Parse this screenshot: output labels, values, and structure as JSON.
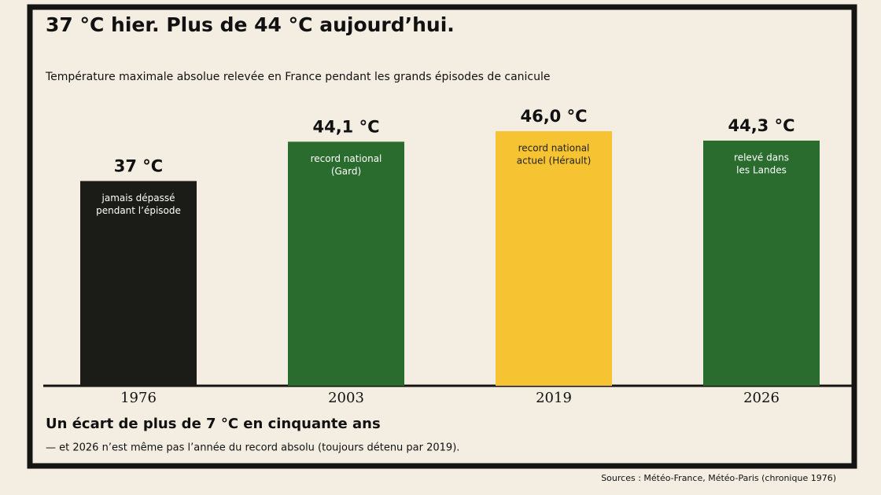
{
  "chart_data": {
    "type": "bar",
    "title": "37 °C hier. Plus de 44 °C aujourd’hui.",
    "subtitle": "Température maximale absolue relevée en France pendant les grands épisodes de canicule",
    "categories": [
      "1976",
      "2003",
      "2019",
      "2026"
    ],
    "values": [
      37,
      44.1,
      46.0,
      44.3
    ],
    "value_labels": [
      "37 °C",
      "44,1 °C",
      "46,0 °C",
      "44,3 °C"
    ],
    "colors": [
      "#1b1b18",
      "#2a6b2e",
      "#f6c332",
      "#2a6b2e"
    ],
    "bar_notes": [
      [
        "jamais dépassé",
        "pendant l’épisode"
      ],
      [
        "record national",
        "(Gard)"
      ],
      [
        "record national",
        "actuel (Hérault)"
      ],
      [
        "relevé dans",
        "les Landes"
      ]
    ],
    "takeaway": "Un écart de plus de 7 °C en cinquante ans",
    "note": "— et 2026 n’est même pas l’année du record absolu (toujours détenu par 2019).",
    "source": "Sources : Météo-France, Météo-Paris (chronique 1976)"
  }
}
